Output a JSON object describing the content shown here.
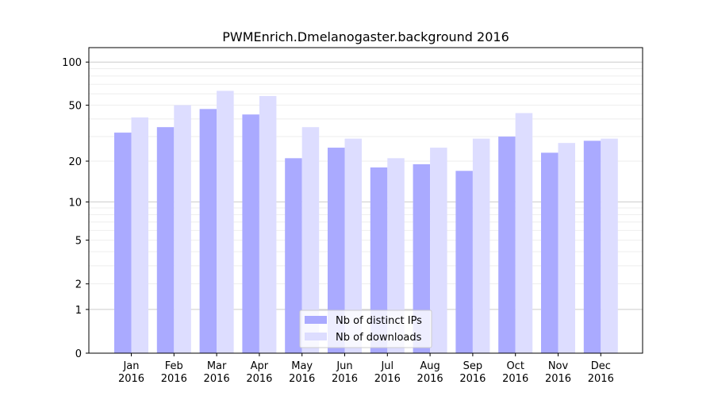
{
  "chart_data": {
    "type": "bar",
    "title": "PWMEnrich.Dmelanogaster.background 2016",
    "xlabel": "",
    "ylabel": "",
    "yscale": "log10(1+y)",
    "ylim": [
      0,
      120
    ],
    "yticks": [
      0,
      1,
      2,
      5,
      10,
      20,
      50,
      100
    ],
    "categories": [
      "Jan\n2016",
      "Feb\n2016",
      "Mar\n2016",
      "Apr\n2016",
      "May\n2016",
      "Jun\n2016",
      "Jul\n2016",
      "Aug\n2016",
      "Sep\n2016",
      "Oct\n2016",
      "Nov\n2016",
      "Dec\n2016"
    ],
    "series": [
      {
        "name": "Nb of distinct IPs",
        "color": "#aaaaff",
        "values": [
          32,
          35,
          47,
          43,
          21,
          25,
          18,
          19,
          17,
          30,
          23,
          28
        ]
      },
      {
        "name": "Nb of downloads",
        "color": "#ddddff",
        "values": [
          41,
          50,
          63,
          58,
          35,
          29,
          21,
          25,
          29,
          44,
          27,
          29
        ]
      }
    ],
    "legend": "lower-center",
    "grid": true
  }
}
